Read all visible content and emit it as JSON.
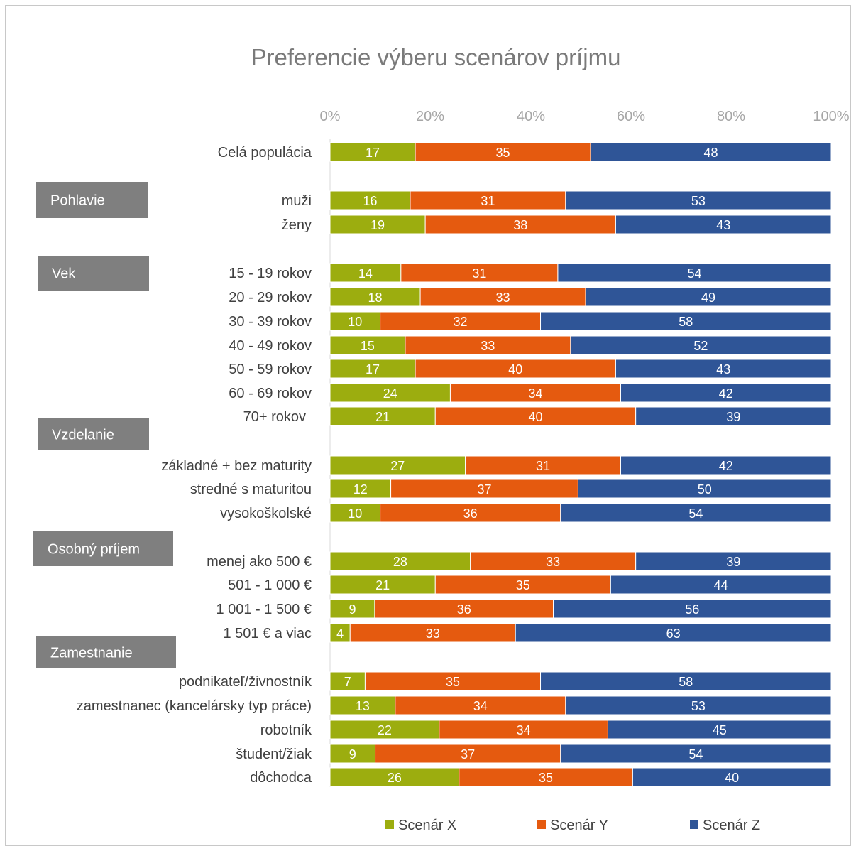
{
  "chart_data": {
    "type": "bar",
    "orientation": "horizontal",
    "stacked": true,
    "title": "Preferencie výberu scenárov príjmu",
    "xlim": [
      0,
      100
    ],
    "x_ticks": [
      "0%",
      "20%",
      "40%",
      "60%",
      "80%",
      "100%"
    ],
    "grid": false,
    "legend_position": "bottom",
    "categories": [
      "Celá populácia",
      "muži",
      "ženy",
      "15 - 19 rokov",
      "20 - 29 rokov",
      "30 - 39 rokov",
      "40 - 49 rokov",
      "50 - 59 rokov",
      "60 - 69 rokov",
      "70+ rokov",
      "základné + bez maturity",
      "stredné s maturitou",
      "vysokoškolské",
      "menej ako 500 €",
      "501 - 1 000 €",
      "1 001 - 1 500 €",
      "1 501 € a viac",
      "podnikateľ/živnostník",
      "zamestnanec (kancelársky typ práce)",
      "robotník",
      "študent/žiak",
      "dôchodca"
    ],
    "series": [
      {
        "name": "Scenár X",
        "color": "#9cad0f",
        "values": [
          17,
          16,
          19,
          14,
          18,
          10,
          15,
          17,
          24,
          21,
          27,
          12,
          10,
          28,
          21,
          9,
          4,
          7,
          13,
          22,
          9,
          26
        ]
      },
      {
        "name": "Scenár Y",
        "color": "#e55a0f",
        "values": [
          35,
          31,
          38,
          31,
          33,
          32,
          33,
          40,
          34,
          40,
          31,
          37,
          36,
          33,
          35,
          36,
          33,
          35,
          34,
          34,
          37,
          35
        ]
      },
      {
        "name": "Scenár Z",
        "color": "#2f5597",
        "values": [
          48,
          53,
          43,
          54,
          49,
          58,
          52,
          43,
          42,
          39,
          42,
          50,
          54,
          39,
          44,
          56,
          63,
          58,
          53,
          45,
          54,
          40
        ]
      }
    ],
    "group_labels": [
      "Pohlavie",
      "Vek",
      "Vzdelanie",
      "Osobný príjem",
      "Zamestnanie"
    ],
    "group_label_color": "#7f7f7f"
  }
}
